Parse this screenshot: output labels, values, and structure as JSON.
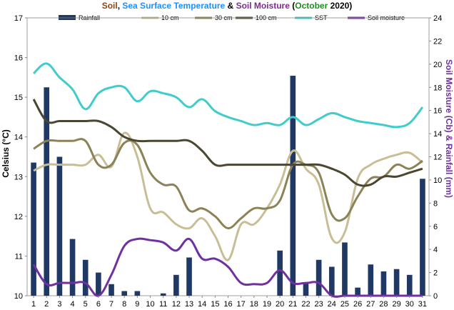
{
  "chart_data": {
    "type": "bar+line",
    "title_parts": [
      {
        "text": "Soil",
        "color": "#8b4513"
      },
      {
        "text": ", ",
        "color": "#000000"
      },
      {
        "text": "Sea Surface Temperature",
        "color": "#1e90ff"
      },
      {
        "text": " & ",
        "color": "#000000"
      },
      {
        "text": "Soil Moisture",
        "color": "#7b2d8e"
      },
      {
        "text": " (",
        "color": "#000000"
      },
      {
        "text": "October",
        "color": "#228b22"
      },
      {
        "text": " 2020)",
        "color": "#000000"
      }
    ],
    "ylabel_left": "Celsius (°C)",
    "ylabel_right": "Soil Moisture (Cb) & Rainfall (mm)",
    "ylim_left": [
      10,
      17
    ],
    "ylim_right": [
      0,
      24
    ],
    "yticks_left": [
      "10",
      "11",
      "12",
      "13",
      "14",
      "15",
      "16",
      "17"
    ],
    "yticks_right": [
      "0",
      "2",
      "4",
      "6",
      "8",
      "10",
      "12",
      "14",
      "16",
      "18",
      "20",
      "22",
      "24"
    ],
    "x": [
      1,
      2,
      3,
      4,
      5,
      6,
      7,
      8,
      9,
      10,
      11,
      12,
      13,
      14,
      15,
      16,
      17,
      18,
      19,
      20,
      21,
      22,
      23,
      24,
      25,
      26,
      27,
      28,
      29,
      30,
      31
    ],
    "bars": {
      "name": "Rainfall",
      "axis": "right",
      "color": "#1f3864",
      "values": [
        11.5,
        18.0,
        12.0,
        4.9,
        3.1,
        2.0,
        1.0,
        0.4,
        0.4,
        0,
        0.2,
        1.8,
        3.3,
        0,
        0,
        0,
        0,
        0,
        0,
        3.9,
        19.0,
        1.1,
        3.1,
        2.5,
        4.6,
        0.7,
        2.7,
        2.1,
        2.3,
        1.8,
        10.1
      ]
    },
    "series": [
      {
        "name": "10 cm",
        "axis": "left",
        "color": "#c8be96",
        "values": [
          13.15,
          13.3,
          13.3,
          13.3,
          13.3,
          13.55,
          13.25,
          14.1,
          13.5,
          12.2,
          12.1,
          11.8,
          11.7,
          11.95,
          11.5,
          10.9,
          11.8,
          11.8,
          12.2,
          12.8,
          13.65,
          13.2,
          12.8,
          11.45,
          11.6,
          12.95,
          13.3,
          13.45,
          13.55,
          13.6,
          13.35
        ]
      },
      {
        "name": "30 cm",
        "axis": "left",
        "color": "#8c8257",
        "values": [
          13.7,
          13.9,
          13.9,
          13.9,
          13.9,
          13.3,
          13.3,
          13.85,
          13.8,
          13.1,
          12.8,
          12.75,
          12.15,
          12.2,
          12.0,
          11.7,
          11.95,
          12.2,
          12.2,
          12.4,
          13.3,
          13.3,
          13.1,
          12.05,
          11.95,
          12.5,
          12.95,
          13.0,
          13.3,
          13.2,
          13.4
        ]
      },
      {
        "name": "100 cm",
        "axis": "left",
        "color": "#4b4630",
        "values": [
          14.95,
          14.4,
          14.4,
          14.4,
          14.4,
          14.4,
          14.25,
          14.0,
          13.9,
          13.9,
          13.9,
          13.9,
          13.9,
          13.65,
          13.3,
          13.3,
          13.3,
          13.3,
          13.3,
          13.3,
          13.3,
          13.3,
          13.3,
          13.2,
          13.05,
          12.8,
          12.8,
          13.0,
          13.0,
          13.1,
          13.2
        ]
      },
      {
        "name": "SST",
        "axis": "left",
        "color": "#40cccc",
        "values": [
          15.6,
          15.85,
          15.5,
          15.2,
          14.7,
          15.1,
          15.25,
          15.25,
          14.9,
          15.15,
          15.1,
          15.0,
          14.75,
          14.95,
          14.65,
          14.5,
          14.4,
          14.3,
          14.35,
          14.3,
          14.5,
          14.3,
          14.45,
          14.6,
          14.5,
          14.4,
          14.35,
          14.3,
          14.25,
          14.35,
          14.75
        ]
      },
      {
        "name": "Soil moisture",
        "axis": "right",
        "color": "#7030a0",
        "values": [
          2.7,
          1.0,
          1.1,
          1.1,
          1.1,
          0.0,
          1.8,
          4.3,
          4.9,
          4.8,
          4.6,
          3.9,
          4.9,
          3.2,
          3.2,
          2.5,
          1.1,
          1.0,
          1.1,
          2.2,
          1.1,
          1.1,
          1.1,
          0.0,
          0.0,
          0.0,
          0.0,
          0.0,
          0.0,
          0.0,
          0.0
        ]
      }
    ],
    "legend": [
      "Rainfall",
      "10 cm",
      "30 cm",
      "100 cm",
      "SST",
      "Soil moisture"
    ],
    "legend_placement": "top",
    "grid": false
  }
}
